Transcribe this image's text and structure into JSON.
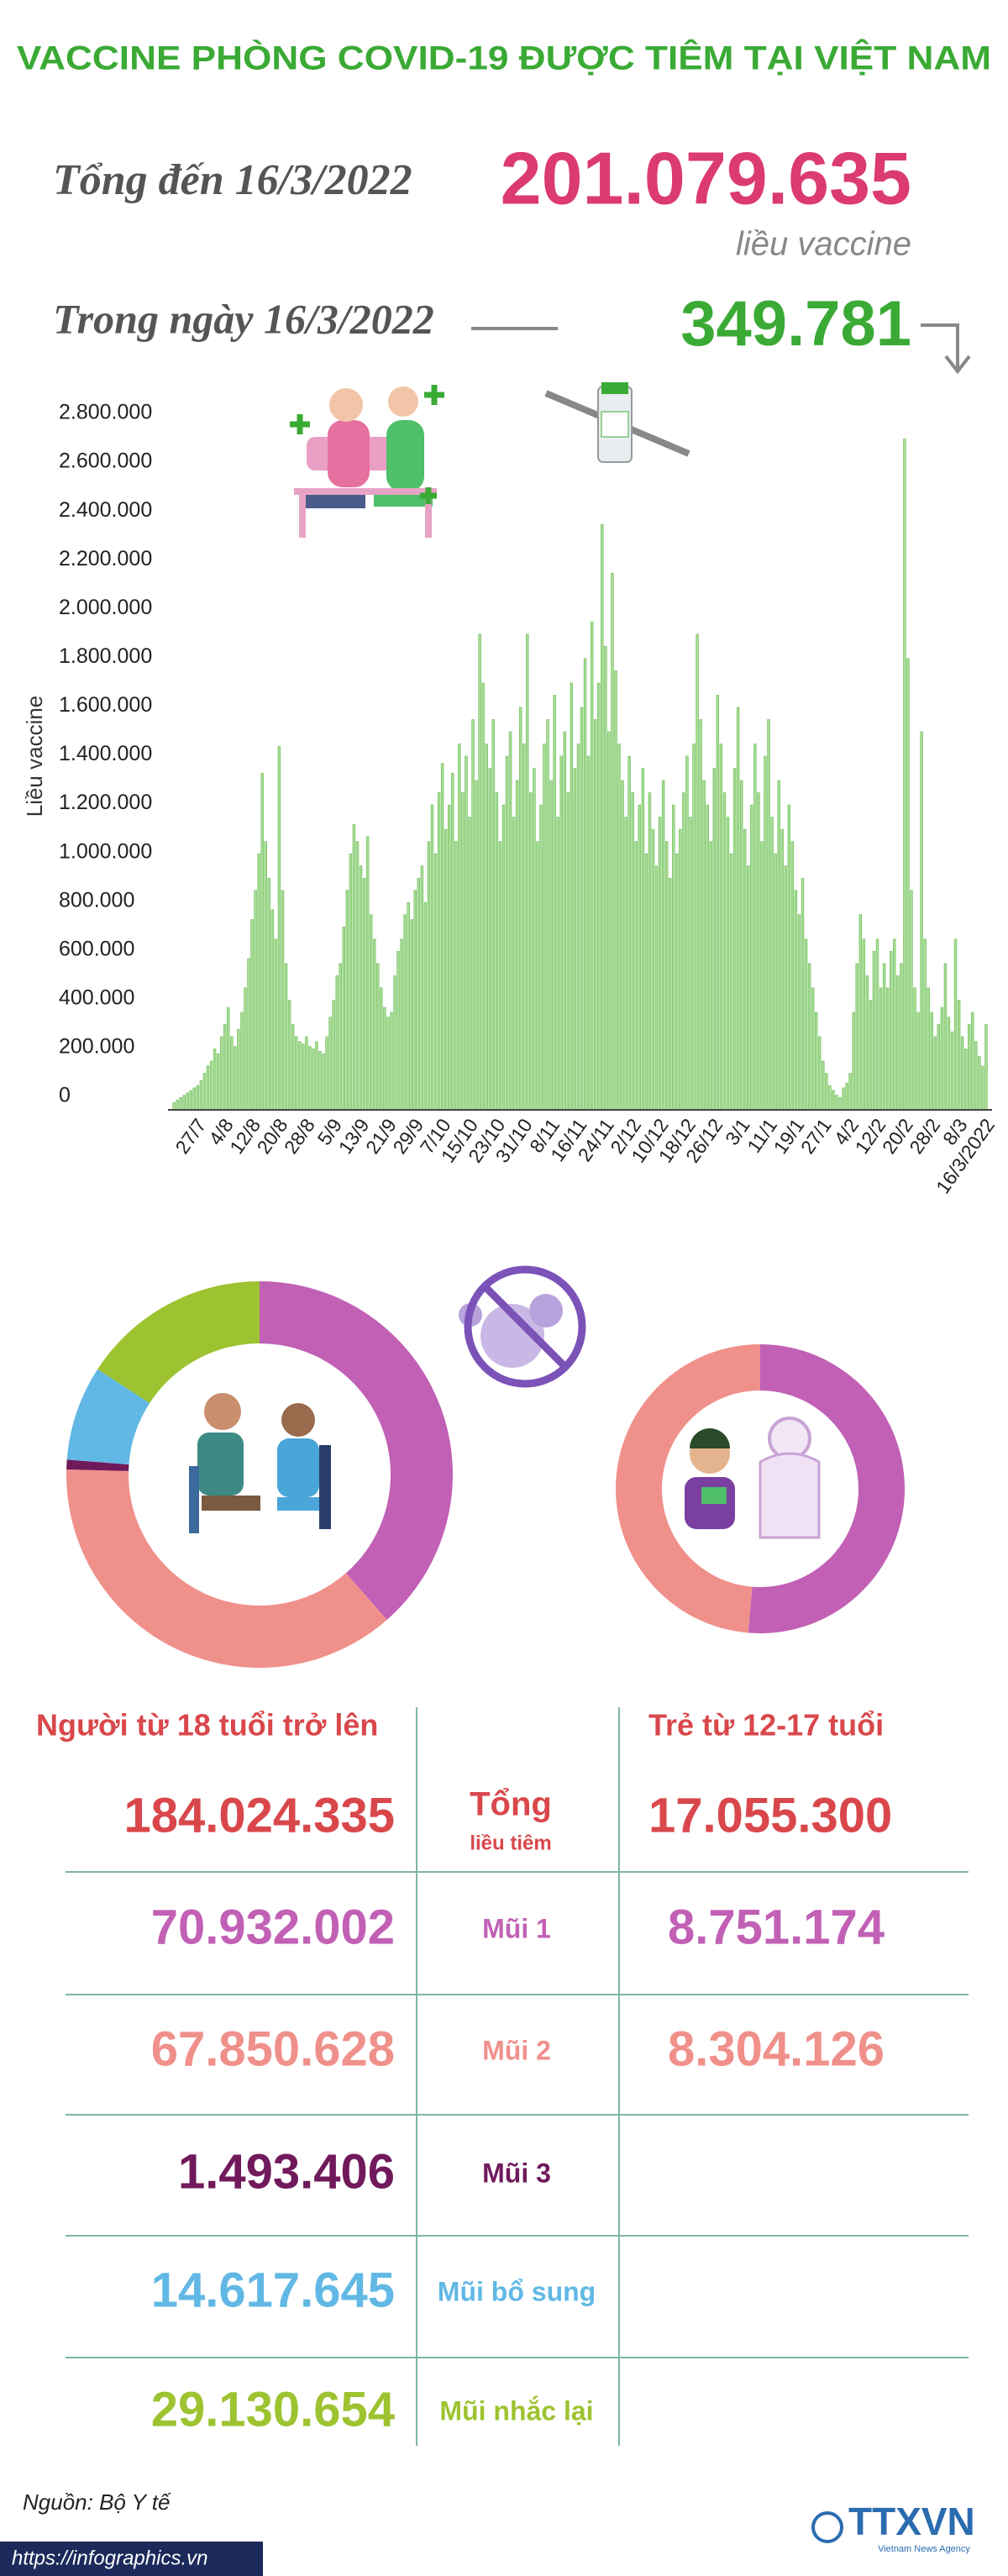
{
  "header": {
    "title": "VACCINE PHÒNG COVID-19 ĐƯỢC TIÊM TẠI VIỆT NAM",
    "total_label": "Tổng đến 16/3/2022",
    "total_value": "201.079.635",
    "total_unit": "liều vaccine",
    "today_label": "Trong ngày 16/3/2022",
    "today_value": "349.781"
  },
  "chart_data": [
    {
      "type": "bar",
      "y_label": "Liều vaccine",
      "color": "#a6dc93",
      "categories": [
        null,
        null,
        null,
        null,
        null,
        null,
        null,
        "27/7",
        null,
        null,
        null,
        null,
        null,
        null,
        null,
        "4/8",
        null,
        null,
        null,
        null,
        null,
        null,
        null,
        "12/8",
        null,
        null,
        null,
        null,
        null,
        null,
        null,
        "20/8",
        null,
        null,
        null,
        null,
        null,
        null,
        null,
        "28/8",
        null,
        null,
        null,
        null,
        null,
        null,
        null,
        "5/9",
        null,
        null,
        null,
        null,
        null,
        null,
        null,
        "13/9",
        null,
        null,
        null,
        null,
        null,
        null,
        null,
        "21/9",
        null,
        null,
        null,
        null,
        null,
        null,
        null,
        "29/9",
        null,
        null,
        null,
        null,
        null,
        null,
        null,
        "7/10",
        null,
        null,
        null,
        null,
        null,
        null,
        null,
        "15/10",
        null,
        null,
        null,
        null,
        null,
        null,
        null,
        "23/10",
        null,
        null,
        null,
        null,
        null,
        null,
        null,
        "31/10",
        null,
        null,
        null,
        null,
        null,
        null,
        null,
        "8/11",
        null,
        null,
        null,
        null,
        null,
        null,
        null,
        "16/11",
        null,
        null,
        null,
        null,
        null,
        null,
        null,
        "24/11",
        null,
        null,
        null,
        null,
        null,
        null,
        null,
        "2/12",
        null,
        null,
        null,
        null,
        null,
        null,
        null,
        "10/12",
        null,
        null,
        null,
        null,
        null,
        null,
        null,
        "18/12",
        null,
        null,
        null,
        null,
        null,
        null,
        null,
        "26/12",
        null,
        null,
        null,
        null,
        null,
        null,
        null,
        "3/1",
        null,
        null,
        null,
        null,
        null,
        null,
        null,
        "11/1",
        null,
        null,
        null,
        null,
        null,
        null,
        null,
        "19/1",
        null,
        null,
        null,
        null,
        null,
        null,
        null,
        "27/1",
        null,
        null,
        null,
        null,
        null,
        null,
        null,
        "4/2",
        null,
        null,
        null,
        null,
        null,
        null,
        null,
        "12/2",
        null,
        null,
        null,
        null,
        null,
        null,
        null,
        "20/2",
        null,
        null,
        null,
        null,
        null,
        null,
        null,
        "28/2",
        null,
        null,
        null,
        null,
        null,
        null,
        null,
        "8/3",
        null,
        null,
        null,
        null,
        null,
        null,
        null,
        "16/3/2022"
      ],
      "values": [
        30000,
        40000,
        50000,
        60000,
        70000,
        80000,
        90000,
        100000,
        120000,
        150000,
        180000,
        200000,
        250000,
        230000,
        300000,
        350000,
        420000,
        300000,
        260000,
        330000,
        400000,
        500000,
        620000,
        780000,
        900000,
        1050000,
        1380000,
        1100000,
        950000,
        820000,
        700000,
        1490000,
        900000,
        600000,
        450000,
        350000,
        300000,
        280000,
        270000,
        300000,
        260000,
        250000,
        280000,
        240000,
        230000,
        300000,
        380000,
        450000,
        550000,
        600000,
        750000,
        900000,
        1050000,
        1170000,
        1100000,
        1000000,
        950000,
        1120000,
        800000,
        700000,
        600000,
        500000,
        420000,
        380000,
        400000,
        550000,
        650000,
        700000,
        800000,
        850000,
        780000,
        900000,
        950000,
        1000000,
        850000,
        1100000,
        1250000,
        1050000,
        1300000,
        1420000,
        1150000,
        1250000,
        1380000,
        1100000,
        1500000,
        1300000,
        1450000,
        1200000,
        1600000,
        1350000,
        1950000,
        1750000,
        1500000,
        1400000,
        1600000,
        1300000,
        1100000,
        1250000,
        1450000,
        1550000,
        1200000,
        1350000,
        1650000,
        1500000,
        1950000,
        1300000,
        1400000,
        1100000,
        1250000,
        1500000,
        1600000,
        1350000,
        1700000,
        1200000,
        1450000,
        1550000,
        1300000,
        1750000,
        1400000,
        1500000,
        1650000,
        1850000,
        1450000,
        2000000,
        1600000,
        1750000,
        2400000,
        1900000,
        1550000,
        2200000,
        1800000,
        1500000,
        1350000,
        1200000,
        1450000,
        1300000,
        1100000,
        1250000,
        1400000,
        1050000,
        1300000,
        1150000,
        1000000,
        1200000,
        1350000,
        1100000,
        950000,
        1250000,
        1050000,
        1150000,
        1300000,
        1450000,
        1200000,
        1500000,
        1950000,
        1600000,
        1350000,
        1250000,
        1100000,
        1400000,
        1700000,
        1500000,
        1300000,
        1200000,
        1050000,
        1400000,
        1650000,
        1350000,
        1150000,
        1000000,
        1250000,
        1500000,
        1300000,
        1100000,
        1450000,
        1600000,
        1200000,
        1050000,
        1350000,
        1150000,
        1000000,
        1250000,
        1100000,
        900000,
        800000,
        950000,
        700000,
        600000,
        500000,
        400000,
        300000,
        200000,
        150000,
        100000,
        80000,
        60000,
        50000,
        90000,
        110000,
        150000,
        400000,
        600000,
        800000,
        700000,
        550000,
        450000,
        650000,
        700000,
        500000,
        600000,
        500000,
        650000,
        700000,
        550000,
        600000,
        2750000,
        1850000,
        900000,
        500000,
        400000,
        1550000,
        700000,
        500000,
        400000,
        300000,
        350000,
        420000,
        600000,
        380000,
        320000,
        700000,
        450000,
        300000,
        250000,
        350000,
        400000,
        280000,
        220000,
        180000,
        349781
      ],
      "ylim": [
        0,
        2800000
      ],
      "yticks": [
        0,
        {
          "value": 200000,
          "label": "200.000"
        },
        {
          "value": 400000,
          "label": "400.000"
        },
        {
          "value": 600000,
          "label": "600.000"
        },
        {
          "value": 800000,
          "label": "800.000"
        },
        {
          "value": 1000000,
          "label": "1.000.000"
        },
        {
          "value": 1200000,
          "label": "1.200.000"
        },
        {
          "value": 1400000,
          "label": "1.400.000"
        },
        {
          "value": 1600000,
          "label": "1.600.000"
        },
        {
          "value": 1800000,
          "label": "1.800.000"
        },
        {
          "value": 2000000,
          "label": "2.000.000"
        },
        {
          "value": 2200000,
          "label": "2.200.000"
        },
        {
          "value": 2400000,
          "label": "2.400.000"
        },
        {
          "value": 2600000,
          "label": "2.600.000"
        },
        {
          "value": 2800000,
          "label": "2.800.000"
        }
      ]
    },
    {
      "type": "donut",
      "categories": [
        "Mũi 1",
        "Mũi 2",
        "Mũi 3",
        "Mũi bổ sung",
        "Mũi nhắc lại"
      ],
      "values": [
        70932002,
        67850628,
        1493406,
        14617645,
        29130654
      ],
      "value_labels": [
        "70.932.002",
        "67.850.628",
        "1.493.406",
        "14.617.645",
        "29.130.654"
      ],
      "colors": [
        "#c160b5",
        "#f0908b",
        "#701a5c",
        "#62b8e4",
        "#9dc331"
      ]
    },
    {
      "type": "donut",
      "values": [
        8751174,
        8304126
      ],
      "value_labels": [
        "8.751.174",
        "8.304.126"
      ],
      "colors": [
        "#c160b5",
        "#f0908b"
      ]
    }
  ],
  "table": {
    "headers": [
      "Người từ 18 tuổi trở lên",
      "Trẻ từ 12-17 tuổi"
    ],
    "total_label": "Tổng",
    "total_sublabel": "liều tiêm",
    "totals": [
      "184.024.335",
      "17.055.300"
    ]
  },
  "footer": {
    "source": "Nguồn: Bộ Y tế",
    "url": "https://infographics.vn",
    "logo": "TTXVN",
    "logo_sub": "Vietnam News Agency"
  }
}
